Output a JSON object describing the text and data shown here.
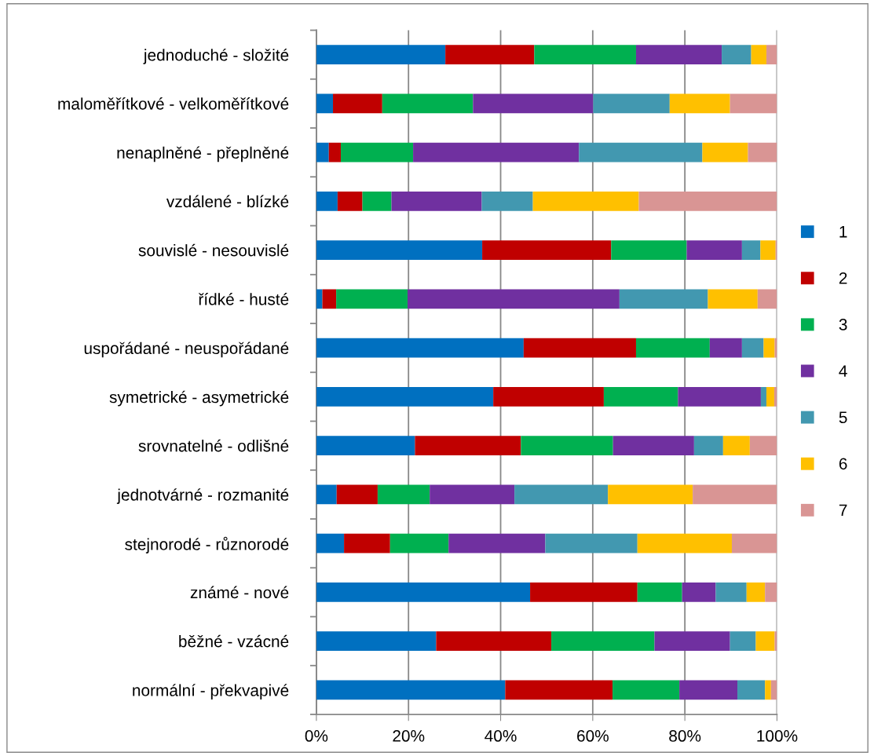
{
  "chart_data": {
    "type": "bar",
    "orientation": "horizontal",
    "stacked": true,
    "categories": [
      "jednoduché - složité",
      "maloměřítkové - velkoměřítkové",
      "nenaplněné - přeplněné",
      "vzdálené - blízké",
      "souvislé - nesouvislé",
      "řídké - husté",
      "uspořádané - neuspořádané",
      "symetrické - asymetrické",
      "srovnatelné - odlišné",
      "jednotvárné - rozmanité",
      "stejnorodé - různorodé",
      "známé - nové",
      "běžné - vzácné",
      "normální - překvapivé"
    ],
    "series": [
      {
        "name": "1",
        "color": "#0070c0",
        "values": [
          28.0,
          3.6,
          2.7,
          4.6,
          36.0,
          1.3,
          45.0,
          38.4,
          21.4,
          4.4,
          6.0,
          46.4,
          26.0,
          41.0
        ]
      },
      {
        "name": "2",
        "color": "#c00000",
        "values": [
          19.3,
          10.7,
          2.6,
          5.4,
          28.0,
          3.0,
          24.4,
          24.0,
          23.0,
          8.9,
          10.0,
          23.3,
          25.0,
          23.3
        ]
      },
      {
        "name": "3",
        "color": "#00b050",
        "values": [
          22.1,
          19.7,
          15.7,
          6.3,
          16.4,
          15.5,
          16.0,
          16.1,
          20.0,
          11.3,
          12.7,
          9.7,
          22.4,
          14.5
        ]
      },
      {
        "name": "4",
        "color": "#7030a0",
        "values": [
          18.6,
          26.1,
          36.0,
          19.6,
          12.0,
          46.0,
          7.0,
          18.0,
          17.6,
          18.4,
          21.0,
          7.3,
          16.4,
          12.6
        ]
      },
      {
        "name": "5",
        "color": "#4298b0",
        "values": [
          6.4,
          16.6,
          26.8,
          11.1,
          4.0,
          19.2,
          4.7,
          1.2,
          6.3,
          20.3,
          20.0,
          6.7,
          5.6,
          6.0
        ]
      },
      {
        "name": "6",
        "color": "#ffc000",
        "values": [
          3.3,
          13.1,
          9.9,
          23.0,
          3.3,
          10.8,
          2.4,
          1.7,
          5.8,
          18.4,
          20.5,
          4.0,
          4.1,
          1.3
        ]
      },
      {
        "name": "7",
        "color": "#d99594",
        "values": [
          2.3,
          10.2,
          6.3,
          30.0,
          0.3,
          4.2,
          0.5,
          0.6,
          5.9,
          18.3,
          9.8,
          2.6,
          0.5,
          1.3
        ]
      }
    ],
    "xlim": [
      0,
      100
    ],
    "xticks": [
      {
        "value": 0,
        "label": "0%"
      },
      {
        "value": 20,
        "label": "20%"
      },
      {
        "value": 40,
        "label": "40%"
      },
      {
        "value": 60,
        "label": "60%"
      },
      {
        "value": 80,
        "label": "80%"
      },
      {
        "value": 100,
        "label": "100%"
      }
    ],
    "grid": "x",
    "legend": "right"
  }
}
